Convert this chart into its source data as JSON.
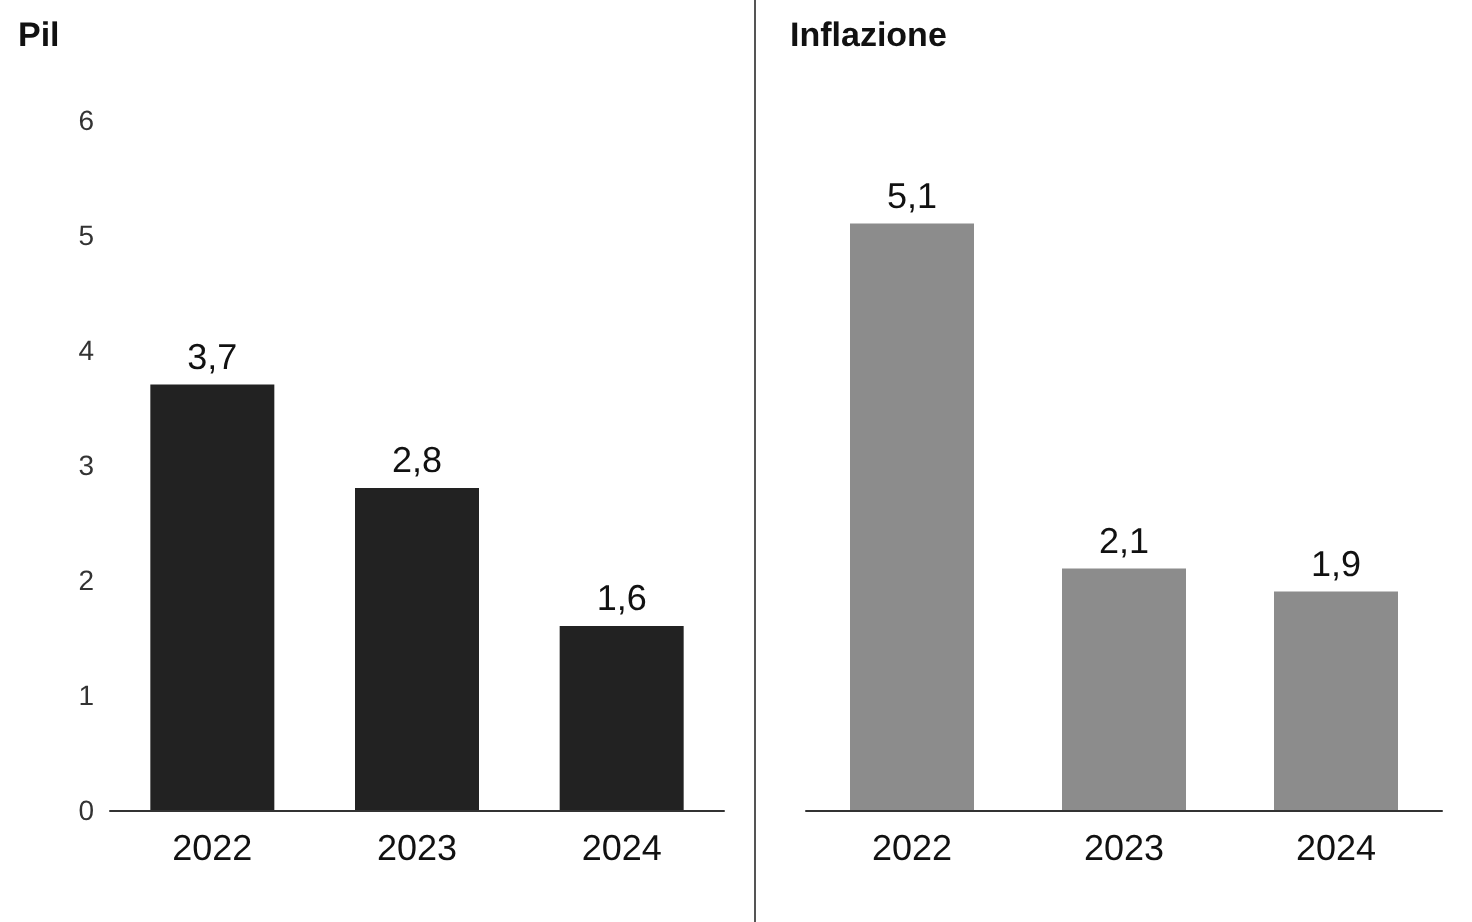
{
  "chart_data": [
    {
      "type": "bar",
      "title": "Pil",
      "categories": [
        "2022",
        "2023",
        "2024"
      ],
      "values": [
        3.7,
        2.8,
        1.6
      ],
      "color": "#222222",
      "ylim": [
        0,
        6
      ],
      "yticks": [
        0,
        1,
        2,
        3,
        4,
        5,
        6
      ],
      "value_labels": [
        "3,7",
        "2,8",
        "1,6"
      ]
    },
    {
      "type": "bar",
      "title": "Inflazione",
      "categories": [
        "2022",
        "2023",
        "2024"
      ],
      "values": [
        5.1,
        2.1,
        1.9
      ],
      "color": "#8c8c8c",
      "ylim": [
        0,
        6
      ],
      "yticks": [
        0,
        1,
        2,
        3,
        4,
        5,
        6
      ],
      "value_labels": [
        "5,1",
        "2,1",
        "1,9"
      ],
      "tick_labels": "x"
    }
  ]
}
